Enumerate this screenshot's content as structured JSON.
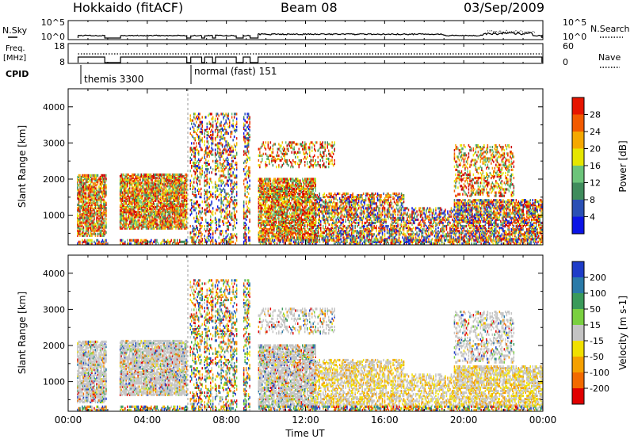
{
  "header": {
    "station": "Hokkaido (fitACF)",
    "beam": "Beam 08",
    "date": "03/Sep/2009"
  },
  "colors": {
    "power": [
      "#0b14e6",
      "#2a50b5",
      "#3f8c5c",
      "#6cc47a",
      "#e6e600",
      "#f5a800",
      "#f25a00",
      "#e61500",
      "#c80000"
    ],
    "velocity": [
      "#1e3cc8",
      "#2a7aa8",
      "#3a9a5a",
      "#7ad040",
      "#c4c4c4",
      "#f0e000",
      "#f5a000",
      "#f26a00",
      "#e00000"
    ],
    "ground_scatter": "#c4c4c4"
  },
  "chart_data": [
    {
      "type": "line",
      "name": "top-panel",
      "labels_left": [
        "N.Sky",
        "Freq.",
        "[MHz]",
        "CPID"
      ],
      "labels_right": [
        "N.Search",
        "Nave"
      ],
      "nsky_ticks": [
        "10^5",
        "10^0"
      ],
      "nsearch_ticks": [
        "10^5",
        "10^0"
      ],
      "freq_ticks": [
        18,
        8
      ],
      "nave_ticks": [
        60,
        0
      ],
      "cpid_labels": [
        "themis 3300",
        "normal (fast) 151"
      ],
      "cpid_change_hours": [
        1.0,
        6.0
      ],
      "data_gaps_hours": [
        [
          0,
          0.45
        ],
        [
          1.9,
          2.6
        ],
        [
          6.0,
          6.15
        ],
        [
          6.75,
          6.85
        ],
        [
          7.3,
          7.4
        ],
        [
          8.5,
          8.8
        ],
        [
          9.2,
          9.6
        ]
      ],
      "xlim": [
        0,
        24
      ]
    },
    {
      "type": "heatmap",
      "name": "power",
      "xlabel": "",
      "ylabel": "Slant Range [km]",
      "xlim": [
        0,
        24
      ],
      "ylim": [
        180,
        4500
      ],
      "yticks": [
        1000,
        2000,
        3000,
        4000
      ],
      "colorbar": {
        "label": "Power [dB]",
        "ticks": [
          4,
          8,
          12,
          16,
          20,
          24,
          28
        ],
        "range": [
          0,
          30
        ]
      }
    },
    {
      "type": "heatmap",
      "name": "velocity",
      "xlabel": "Time UT",
      "ylabel": "Slant Range [km]",
      "xlim": [
        0,
        24
      ],
      "ylim": [
        180,
        4500
      ],
      "yticks": [
        1000,
        2000,
        3000,
        4000
      ],
      "xticks": [
        "00:00",
        "04:00",
        "08:00",
        "12:00",
        "16:00",
        "20:00",
        "00:00"
      ],
      "colorbar": {
        "label": "Velocity [m s-1]",
        "ticks": [
          200,
          100,
          50,
          15,
          -15,
          -50,
          -100,
          -200
        ]
      }
    }
  ]
}
